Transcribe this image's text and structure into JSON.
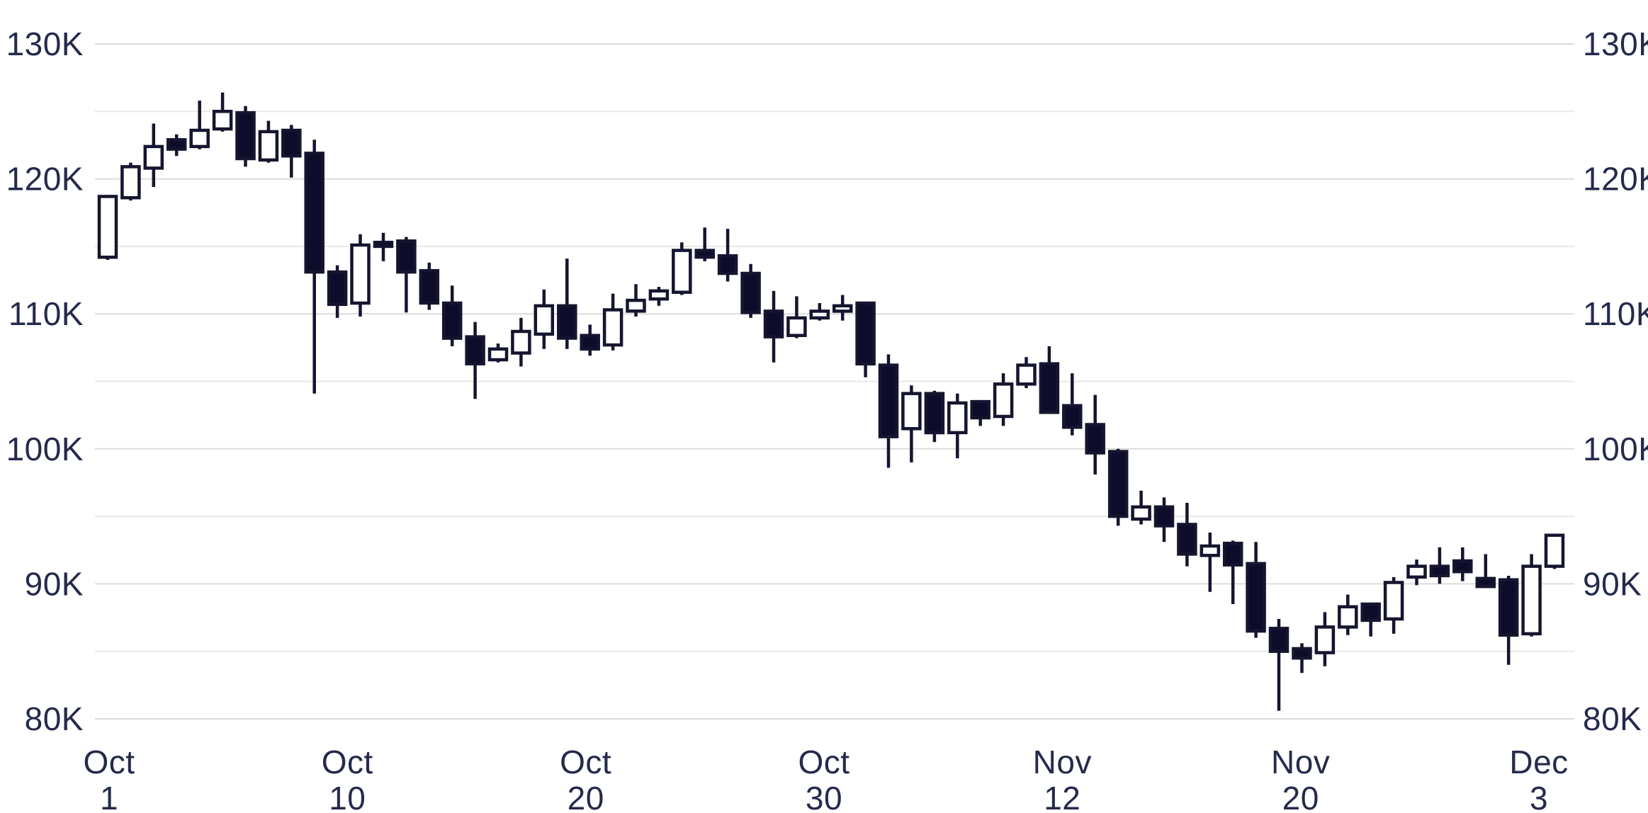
{
  "chart_data": {
    "type": "candlestick",
    "description": "Daily candlestick price chart, values in thousands (K)",
    "y_axis": {
      "unit": "K",
      "min": 80,
      "max": 130,
      "grid_step": 5,
      "label_sides": [
        "left",
        "right"
      ],
      "labels": [
        {
          "v": 130,
          "t": "130K"
        },
        {
          "v": 120,
          "t": "120K"
        },
        {
          "v": 110,
          "t": "110K"
        },
        {
          "v": 100,
          "t": "100K"
        },
        {
          "v": 90,
          "t": "90K"
        },
        {
          "v": 80,
          "t": "80K"
        }
      ]
    },
    "x_axis": {
      "ticks": [
        {
          "month": "Oct",
          "day": "1"
        },
        {
          "month": "Oct",
          "day": "10"
        },
        {
          "month": "Oct",
          "day": "20"
        },
        {
          "month": "Oct",
          "day": "30"
        },
        {
          "month": "Nov",
          "day": "12"
        },
        {
          "month": "Nov",
          "day": "20"
        },
        {
          "month": "Dec",
          "day": "3"
        }
      ]
    },
    "candles": [
      {
        "date": "Oct 1",
        "o": 114.2,
        "h": 118.8,
        "l": 114.0,
        "c": 118.7
      },
      {
        "date": "Oct 2",
        "o": 118.6,
        "h": 121.2,
        "l": 118.4,
        "c": 120.9
      },
      {
        "date": "Oct 3",
        "o": 120.8,
        "h": 124.1,
        "l": 119.4,
        "c": 122.4
      },
      {
        "date": "Oct 4",
        "o": 122.9,
        "h": 123.3,
        "l": 121.7,
        "c": 122.2
      },
      {
        "date": "Oct 5",
        "o": 122.4,
        "h": 125.8,
        "l": 122.2,
        "c": 123.6
      },
      {
        "date": "Oct 6",
        "o": 123.7,
        "h": 126.4,
        "l": 123.5,
        "c": 125.0
      },
      {
        "date": "Oct 7",
        "o": 124.9,
        "h": 125.4,
        "l": 120.9,
        "c": 121.5
      },
      {
        "date": "Oct 8",
        "o": 121.4,
        "h": 124.3,
        "l": 121.2,
        "c": 123.5
      },
      {
        "date": "Oct 9",
        "o": 123.6,
        "h": 124.0,
        "l": 120.1,
        "c": 121.7
      },
      {
        "date": "Oct 10",
        "o": 121.9,
        "h": 122.9,
        "l": 104.1,
        "c": 113.1
      },
      {
        "date": "Oct 11",
        "o": 113.1,
        "h": 113.6,
        "l": 109.7,
        "c": 110.7
      },
      {
        "date": "Oct 12",
        "o": 110.8,
        "h": 115.9,
        "l": 109.8,
        "c": 115.1
      },
      {
        "date": "Oct 13",
        "o": 115.3,
        "h": 116.0,
        "l": 113.9,
        "c": 115.0
      },
      {
        "date": "Oct 14",
        "o": 115.4,
        "h": 115.7,
        "l": 110.1,
        "c": 113.1
      },
      {
        "date": "Oct 15",
        "o": 113.2,
        "h": 113.8,
        "l": 110.3,
        "c": 110.8
      },
      {
        "date": "Oct 16",
        "o": 110.8,
        "h": 112.1,
        "l": 107.6,
        "c": 108.2
      },
      {
        "date": "Oct 17",
        "o": 108.3,
        "h": 109.4,
        "l": 103.7,
        "c": 106.3
      },
      {
        "date": "Oct 18",
        "o": 106.6,
        "h": 107.8,
        "l": 106.4,
        "c": 107.4
      },
      {
        "date": "Oct 19",
        "o": 107.1,
        "h": 109.7,
        "l": 106.1,
        "c": 108.7
      },
      {
        "date": "Oct 20",
        "o": 108.5,
        "h": 111.8,
        "l": 107.4,
        "c": 110.6
      },
      {
        "date": "Oct 21",
        "o": 110.6,
        "h": 114.1,
        "l": 107.4,
        "c": 108.2
      },
      {
        "date": "Oct 22",
        "o": 108.4,
        "h": 109.2,
        "l": 106.9,
        "c": 107.4
      },
      {
        "date": "Oct 23",
        "o": 107.7,
        "h": 111.5,
        "l": 107.3,
        "c": 110.3
      },
      {
        "date": "Oct 24",
        "o": 110.2,
        "h": 112.2,
        "l": 109.8,
        "c": 111.0
      },
      {
        "date": "Oct 25",
        "o": 111.1,
        "h": 112.0,
        "l": 110.6,
        "c": 111.7
      },
      {
        "date": "Oct 26",
        "o": 111.6,
        "h": 115.3,
        "l": 111.4,
        "c": 114.7
      },
      {
        "date": "Oct 27",
        "o": 114.7,
        "h": 116.4,
        "l": 113.9,
        "c": 114.2
      },
      {
        "date": "Oct 28",
        "o": 114.3,
        "h": 116.3,
        "l": 112.4,
        "c": 113.0
      },
      {
        "date": "Oct 29",
        "o": 113.0,
        "h": 113.7,
        "l": 109.7,
        "c": 110.1
      },
      {
        "date": "Oct 30",
        "o": 110.2,
        "h": 111.7,
        "l": 106.4,
        "c": 108.3
      },
      {
        "date": "Oct 31",
        "o": 108.4,
        "h": 111.3,
        "l": 108.2,
        "c": 109.7
      },
      {
        "date": "Nov 1",
        "o": 109.7,
        "h": 110.8,
        "l": 109.5,
        "c": 110.2
      },
      {
        "date": "Nov 2",
        "o": 110.2,
        "h": 111.4,
        "l": 109.5,
        "c": 110.6
      },
      {
        "date": "Nov 3",
        "o": 110.8,
        "h": 110.9,
        "l": 105.3,
        "c": 106.3
      },
      {
        "date": "Nov 4",
        "o": 106.2,
        "h": 107.0,
        "l": 98.6,
        "c": 100.9
      },
      {
        "date": "Nov 5",
        "o": 101.5,
        "h": 104.7,
        "l": 99.0,
        "c": 104.1
      },
      {
        "date": "Nov 6",
        "o": 104.1,
        "h": 104.3,
        "l": 100.5,
        "c": 101.2
      },
      {
        "date": "Nov 7",
        "o": 101.2,
        "h": 104.1,
        "l": 99.3,
        "c": 103.4
      },
      {
        "date": "Nov 8",
        "o": 103.5,
        "h": 103.6,
        "l": 101.7,
        "c": 102.3
      },
      {
        "date": "Nov 9",
        "o": 102.4,
        "h": 105.6,
        "l": 101.7,
        "c": 104.8
      },
      {
        "date": "Nov 10",
        "o": 104.8,
        "h": 106.8,
        "l": 104.5,
        "c": 106.2
      },
      {
        "date": "Nov 11",
        "o": 106.3,
        "h": 107.6,
        "l": 102.6,
        "c": 102.7
      },
      {
        "date": "Nov 12",
        "o": 103.2,
        "h": 105.6,
        "l": 101.0,
        "c": 101.6
      },
      {
        "date": "Nov 13",
        "o": 101.8,
        "h": 104.0,
        "l": 98.1,
        "c": 99.7
      },
      {
        "date": "Nov 14",
        "o": 99.8,
        "h": 100.0,
        "l": 94.3,
        "c": 95.0
      },
      {
        "date": "Nov 15",
        "o": 94.8,
        "h": 96.9,
        "l": 94.4,
        "c": 95.7
      },
      {
        "date": "Nov 16",
        "o": 95.7,
        "h": 96.4,
        "l": 93.1,
        "c": 94.3
      },
      {
        "date": "Nov 17",
        "o": 94.4,
        "h": 96.0,
        "l": 91.3,
        "c": 92.2
      },
      {
        "date": "Nov 18",
        "o": 92.1,
        "h": 93.8,
        "l": 89.4,
        "c": 92.8
      },
      {
        "date": "Nov 19",
        "o": 93.0,
        "h": 93.2,
        "l": 88.5,
        "c": 91.4
      },
      {
        "date": "Nov 20",
        "o": 91.5,
        "h": 93.1,
        "l": 86.0,
        "c": 86.5
      },
      {
        "date": "Nov 21",
        "o": 86.7,
        "h": 87.4,
        "l": 80.6,
        "c": 85.0
      },
      {
        "date": "Nov 22",
        "o": 85.2,
        "h": 85.6,
        "l": 83.4,
        "c": 84.5
      },
      {
        "date": "Nov 23",
        "o": 84.9,
        "h": 87.9,
        "l": 83.9,
        "c": 86.8
      },
      {
        "date": "Nov 24",
        "o": 86.8,
        "h": 89.2,
        "l": 86.2,
        "c": 88.3
      },
      {
        "date": "Nov 25",
        "o": 88.5,
        "h": 88.6,
        "l": 86.1,
        "c": 87.3
      },
      {
        "date": "Nov 26",
        "o": 87.4,
        "h": 90.5,
        "l": 86.3,
        "c": 90.1
      },
      {
        "date": "Nov 27",
        "o": 90.5,
        "h": 91.8,
        "l": 89.9,
        "c": 91.3
      },
      {
        "date": "Nov 28",
        "o": 91.3,
        "h": 92.7,
        "l": 90.0,
        "c": 90.6
      },
      {
        "date": "Nov 29",
        "o": 91.7,
        "h": 92.7,
        "l": 90.2,
        "c": 90.9
      },
      {
        "date": "Nov 30",
        "o": 90.4,
        "h": 92.2,
        "l": 89.7,
        "c": 89.8
      },
      {
        "date": "Dec 1",
        "o": 90.3,
        "h": 90.6,
        "l": 84.0,
        "c": 86.2
      },
      {
        "date": "Dec 2",
        "o": 86.3,
        "h": 92.2,
        "l": 86.1,
        "c": 91.3
      },
      {
        "date": "Dec 3",
        "o": 91.3,
        "h": 93.7,
        "l": 91.1,
        "c": 93.6
      }
    ]
  },
  "style": {
    "background": "#ffffff",
    "up_fill": "#ffffff",
    "down_fill": "#0d0d2b",
    "candle_stroke": "#15152f",
    "wick_color": "#15152f",
    "grid_major": "#dcdcdc",
    "grid_minor": "#e8e8e8",
    "axis_text": "#252a4c"
  }
}
